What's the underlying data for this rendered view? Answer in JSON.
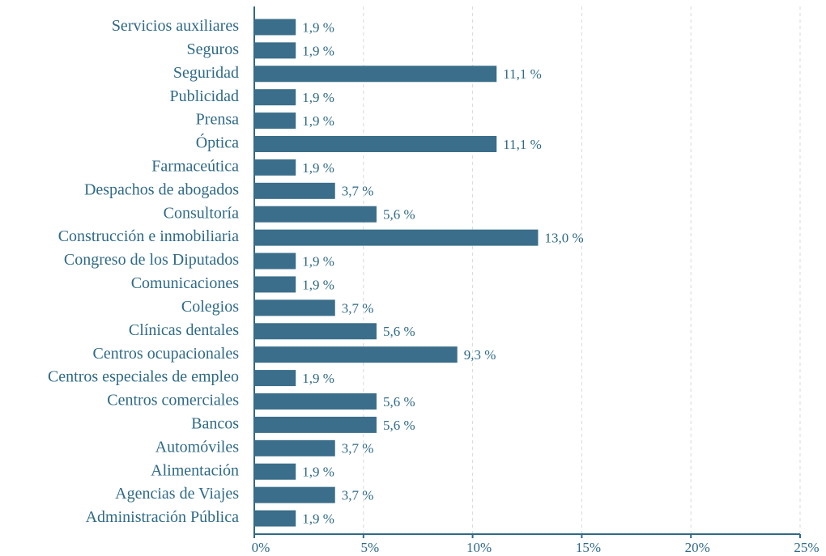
{
  "chart_data": {
    "type": "bar",
    "orientation": "horizontal",
    "color": "#3a6e8a",
    "categories": [
      "Servicios auxiliares",
      "Seguros",
      "Seguridad",
      "Publicidad",
      "Prensa",
      "Óptica",
      "Farmaceútica",
      "Despachos de abogados",
      "Consultoría",
      "Construcción e inmobiliaria",
      "Congreso de los Diputados",
      "Comunicaciones",
      "Colegios",
      "Clínicas dentales",
      "Centros ocupacionales",
      "Centros especiales de empleo",
      "Centros comerciales",
      "Bancos",
      "Automóviles",
      "Alimentación",
      "Agencias de Viajes",
      "Administración Pública"
    ],
    "values": [
      1.9,
      1.9,
      11.1,
      1.9,
      1.9,
      11.1,
      1.9,
      3.7,
      5.6,
      13.0,
      1.9,
      1.9,
      3.7,
      5.6,
      9.3,
      1.9,
      5.6,
      5.6,
      3.7,
      1.9,
      3.7,
      1.9
    ],
    "value_labels": [
      "1,9 %",
      "1,9 %",
      "11,1 %",
      "1,9 %",
      "1,9 %",
      "11,1 %",
      "1,9 %",
      "3,7 %",
      "5,6 %",
      "13,0 %",
      "1,9 %",
      "1,9 %",
      "3,7 %",
      "5,6 %",
      "9,3 %",
      "1,9 %",
      "5,6 %",
      "5,6 %",
      "3,7 %",
      "1,9 %",
      "3,7 %",
      "1,9 %"
    ],
    "xlim": [
      0,
      25
    ],
    "xticks": [
      {
        "value": 0,
        "label": "0%"
      },
      {
        "value": 5,
        "label": "5%"
      },
      {
        "value": 10,
        "label": "10%"
      },
      {
        "value": 15,
        "label": "15%"
      },
      {
        "value": 20,
        "label": "20%"
      },
      {
        "value": 25,
        "label": "25%"
      }
    ],
    "grid": true
  }
}
